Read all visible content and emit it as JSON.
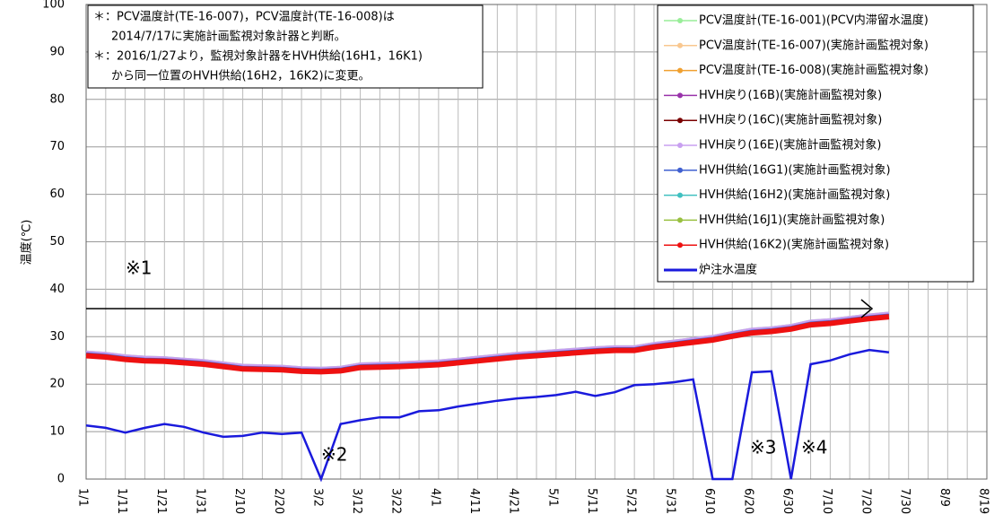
{
  "chart_data": {
    "type": "line",
    "y_label": "温度(℃)",
    "note": [
      "＊：PCV温度計(TE-16-007)，PCV温度計(TE-16-008)は",
      "2014/7/17に実施計画監視対象計器と判断。",
      "＊：2016/1/27より，監視対象計器をHVH供給(16H1，16K1)",
      "から同一位置のHVH供給(16H2，16K2)に変更。"
    ],
    "annotations": [
      "※1",
      "※2",
      "※3",
      "※4"
    ],
    "grid": true,
    "ylim": [
      0,
      100
    ],
    "yticks": [
      0,
      10,
      20,
      30,
      40,
      50,
      60,
      70,
      80,
      90,
      100
    ],
    "categories": [
      "1/1",
      null,
      "1/11",
      null,
      "1/21",
      null,
      "1/31",
      null,
      "2/10",
      null,
      "2/20",
      null,
      "3/2",
      null,
      "3/12",
      null,
      "3/22",
      null,
      "4/1",
      null,
      "4/11",
      null,
      "4/21",
      null,
      "5/1",
      null,
      "5/11",
      null,
      "5/21",
      null,
      "5/31",
      null,
      "6/10",
      null,
      "6/20",
      null,
      "6/30",
      null,
      "7/10",
      null,
      "7/20",
      null,
      "7/30",
      null,
      "8/9",
      null,
      "8/19"
    ],
    "series": [
      {
        "name": "PCV温度計(TE-16-001)(PCV内滞留水温度)",
        "color": "#99ee99",
        "values": [
          26.8,
          26.5,
          26.0,
          25.7,
          25.6,
          25.3,
          25.0,
          24.5,
          24.0,
          23.9,
          23.8,
          23.5,
          23.4,
          23.6,
          24.3,
          24.4,
          24.5,
          24.7,
          24.9,
          25.3,
          25.7,
          26.1,
          26.5,
          26.8,
          27.1,
          27.4,
          27.7,
          27.9,
          27.9,
          28.6,
          29.1,
          29.6,
          30.1,
          30.9,
          31.6,
          31.9,
          32.4,
          33.3,
          33.6,
          34.1,
          34.6,
          35.0,
          null,
          null,
          null,
          null,
          null
        ]
      },
      {
        "name": "PCV温度計(TE-16-007)(実施計画監視対象)",
        "color": "#f9c78f",
        "values": [
          26.0,
          25.7,
          25.2,
          24.9,
          24.8,
          24.5,
          24.2,
          23.7,
          23.2,
          23.1,
          23.0,
          22.7,
          22.6,
          22.8,
          23.5,
          23.6,
          23.7,
          23.9,
          24.1,
          24.5,
          24.9,
          25.3,
          25.7,
          26.0,
          26.3,
          26.6,
          26.9,
          27.1,
          27.1,
          27.8,
          28.3,
          28.8,
          29.3,
          30.1,
          30.8,
          31.1,
          31.6,
          32.5,
          32.8,
          33.3,
          33.8,
          34.2,
          null,
          null,
          null,
          null,
          null
        ]
      },
      {
        "name": "PCV温度計(TE-16-008)(実施計画監視対象)",
        "color": "#f0a030",
        "values": [
          26.0,
          25.7,
          25.2,
          24.9,
          24.8,
          24.5,
          24.2,
          23.7,
          23.2,
          23.1,
          23.0,
          22.7,
          22.6,
          22.8,
          23.5,
          23.6,
          23.7,
          23.9,
          24.1,
          24.5,
          24.9,
          25.3,
          25.7,
          26.0,
          26.3,
          26.6,
          26.9,
          27.1,
          27.1,
          27.8,
          28.3,
          28.8,
          29.3,
          30.1,
          30.8,
          31.1,
          31.6,
          32.5,
          32.8,
          33.3,
          33.8,
          34.2,
          null,
          null,
          null,
          null,
          null
        ]
      },
      {
        "name": "HVH戻り(16B)(実施計画監視対象)",
        "color": "#9933aa",
        "values": [
          26.4,
          26.1,
          25.6,
          25.3,
          25.2,
          24.9,
          24.6,
          24.1,
          23.6,
          23.5,
          23.4,
          23.1,
          23.0,
          23.2,
          23.9,
          24.0,
          24.1,
          24.3,
          24.5,
          24.9,
          25.3,
          25.7,
          26.1,
          26.4,
          26.7,
          27.0,
          27.3,
          27.5,
          27.5,
          28.2,
          28.7,
          29.2,
          29.7,
          30.5,
          31.2,
          31.5,
          32.0,
          32.9,
          33.2,
          33.7,
          34.2,
          34.6,
          null,
          null,
          null,
          null,
          null
        ]
      },
      {
        "name": "HVH戻り(16C)(実施計画監視対象)",
        "color": "#7a0000",
        "values": [
          26.4,
          26.1,
          25.6,
          25.3,
          25.2,
          24.9,
          24.6,
          24.1,
          23.6,
          23.5,
          23.4,
          23.1,
          23.0,
          23.2,
          23.9,
          24.0,
          24.1,
          24.3,
          24.5,
          24.9,
          25.3,
          25.7,
          26.1,
          26.4,
          26.7,
          27.0,
          27.3,
          27.5,
          27.5,
          28.2,
          28.7,
          29.2,
          29.7,
          30.5,
          31.2,
          31.5,
          32.0,
          32.9,
          33.2,
          33.7,
          34.2,
          34.6,
          null,
          null,
          null,
          null,
          null
        ]
      },
      {
        "name": "HVH戻り(16E)(実施計画監視対象)",
        "color": "#c8a0f0",
        "values": [
          26.8,
          26.5,
          26.0,
          25.7,
          25.6,
          25.3,
          25.0,
          24.5,
          24.0,
          23.9,
          23.8,
          23.5,
          23.4,
          23.6,
          24.3,
          24.4,
          24.5,
          24.7,
          24.9,
          25.3,
          25.7,
          26.1,
          26.5,
          26.8,
          27.1,
          27.4,
          27.7,
          27.9,
          27.9,
          28.6,
          29.1,
          29.6,
          30.1,
          30.9,
          31.6,
          31.9,
          32.4,
          33.3,
          33.6,
          34.1,
          34.6,
          35.0,
          null,
          null,
          null,
          null,
          null
        ]
      },
      {
        "name": "HVH供給(16G1)(実施計画監視対象)",
        "color": "#4060d0",
        "values": [
          26.4,
          26.1,
          25.6,
          25.3,
          25.2,
          24.9,
          24.6,
          24.1,
          23.6,
          23.5,
          23.4,
          23.1,
          23.0,
          23.2,
          23.9,
          24.0,
          24.1,
          24.3,
          24.5,
          24.9,
          25.3,
          25.7,
          26.1,
          26.4,
          26.7,
          27.0,
          27.3,
          27.5,
          27.5,
          28.2,
          28.7,
          29.2,
          29.7,
          30.5,
          31.2,
          31.5,
          32.0,
          32.9,
          33.2,
          33.7,
          34.2,
          34.6,
          null,
          null,
          null,
          null,
          null
        ]
      },
      {
        "name": "HVH供給(16H2)(実施計画監視対象)",
        "color": "#40c0c0",
        "values": [
          26.0,
          25.7,
          25.2,
          24.9,
          24.8,
          24.5,
          24.2,
          23.7,
          23.2,
          23.1,
          23.0,
          22.7,
          22.6,
          22.8,
          23.5,
          23.6,
          23.7,
          23.9,
          24.1,
          24.5,
          24.9,
          25.3,
          25.7,
          26.0,
          26.3,
          26.6,
          26.9,
          27.1,
          27.1,
          27.8,
          28.3,
          28.8,
          29.3,
          30.1,
          30.8,
          31.1,
          31.6,
          32.5,
          32.8,
          33.3,
          33.8,
          34.2,
          null,
          null,
          null,
          null,
          null
        ]
      },
      {
        "name": "HVH供給(16J1)(実施計画監視対象)",
        "color": "#99c040",
        "values": [
          26.0,
          25.7,
          25.2,
          24.9,
          24.8,
          24.5,
          24.2,
          23.7,
          23.2,
          23.1,
          23.0,
          22.7,
          22.6,
          22.8,
          23.5,
          23.6,
          23.7,
          23.9,
          24.1,
          24.5,
          24.9,
          25.3,
          25.7,
          26.0,
          26.3,
          26.6,
          26.9,
          27.1,
          27.1,
          27.8,
          28.3,
          28.8,
          29.3,
          30.1,
          30.8,
          31.1,
          31.6,
          32.5,
          32.8,
          33.3,
          33.8,
          34.2,
          null,
          null,
          null,
          null,
          null
        ]
      },
      {
        "name": "HVH供給(16K2)(実施計画監視対象)",
        "color": "#ee1111",
        "values": [
          26.0,
          25.7,
          25.2,
          24.9,
          24.8,
          24.5,
          24.2,
          23.7,
          23.2,
          23.1,
          23.0,
          22.7,
          22.6,
          22.8,
          23.5,
          23.6,
          23.7,
          23.9,
          24.1,
          24.5,
          24.9,
          25.3,
          25.7,
          26.0,
          26.3,
          26.6,
          26.9,
          27.1,
          27.1,
          27.8,
          28.3,
          28.8,
          29.3,
          30.1,
          30.8,
          31.1,
          31.6,
          32.5,
          32.8,
          33.3,
          33.8,
          34.2,
          null,
          null,
          null,
          null,
          null
        ]
      },
      {
        "name": "炉注水温度",
        "color": "#1a1adc",
        "values": [
          11.3,
          10.8,
          9.8,
          10.8,
          11.6,
          11.0,
          9.8,
          8.9,
          9.1,
          9.8,
          9.5,
          9.8,
          0,
          11.6,
          12.4,
          13.0,
          13.0,
          14.3,
          14.5,
          15.3,
          15.9,
          16.5,
          17.0,
          17.3,
          17.7,
          18.4,
          17.5,
          18.3,
          19.8,
          20.0,
          20.4,
          21.0,
          0,
          0,
          22.5,
          22.7,
          0,
          24.2,
          25.0,
          26.3,
          27.2,
          26.7,
          null,
          null,
          null,
          null,
          null
        ]
      }
    ]
  }
}
